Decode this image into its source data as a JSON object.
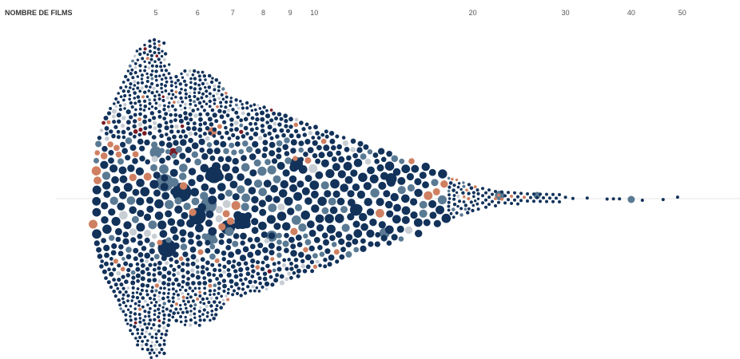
{
  "chart_data": {
    "type": "scatter",
    "subtype": "beeswarm",
    "axis_title": "NOMBRE DE FILMS",
    "x_scale": "log",
    "xlim": [
      1,
      50
    ],
    "x_ticks": [
      5,
      6,
      7,
      8,
      9,
      10,
      20,
      30,
      40,
      50
    ],
    "x_tick_labels": [
      "5",
      "6",
      "7",
      "8",
      "9",
      "10",
      "20",
      "30",
      "40",
      "50"
    ],
    "grid": false,
    "legend": "none",
    "colors": {
      "main": "#12325a",
      "secondary": "#5a7a94",
      "accent": "#d08062",
      "dark_red": "#7a1a24",
      "light": "#c8ced4",
      "baseline": "#e6e6e6"
    },
    "highlighted_points": [
      {
        "x": 5.2,
        "color": "main"
      },
      {
        "x": 5.6,
        "color": "main"
      },
      {
        "x": 6.4,
        "color": "secondary"
      },
      {
        "x": 5.1,
        "color": "secondary"
      },
      {
        "x": 6.2,
        "color": "main"
      },
      {
        "x": 7.0,
        "color": "main"
      },
      {
        "x": 7.7,
        "color": "main"
      },
      {
        "x": 9.3,
        "color": "main"
      },
      {
        "x": 22.5,
        "color": "secondary"
      },
      {
        "x": 26.5,
        "color": "secondary"
      },
      {
        "x": 40.0,
        "color": "secondary"
      },
      {
        "x": 6.4,
        "color": "accent"
      },
      {
        "x": 5.4,
        "color": "dark_red"
      },
      {
        "x": 14.5,
        "color": "accent"
      }
    ],
    "outliers": [
      23,
      25,
      27,
      28,
      30,
      31,
      33,
      36,
      37,
      38,
      42,
      46,
      49
    ]
  }
}
